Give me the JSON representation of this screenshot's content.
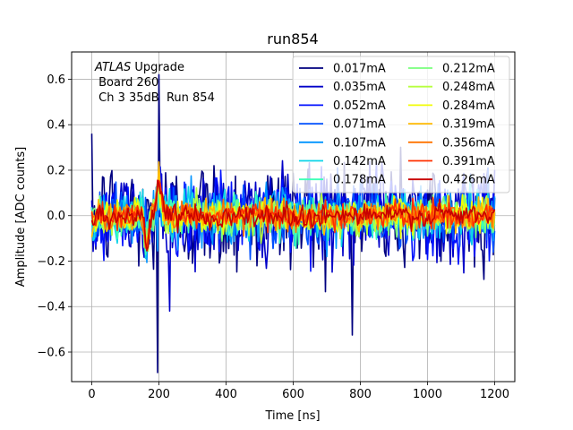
{
  "chart_data": {
    "type": "line",
    "title": "run854",
    "xlabel": "Time [ns]",
    "ylabel": "Amplitude [ADC counts]",
    "xlim": [
      -60,
      1260
    ],
    "ylim": [
      -0.73,
      0.72
    ],
    "xticks": [
      0,
      200,
      400,
      600,
      800,
      1000,
      1200
    ],
    "yticks": [
      -0.6,
      -0.4,
      -0.2,
      0.0,
      0.2,
      0.4,
      0.6
    ],
    "xtick_labels": [
      "0",
      "200",
      "400",
      "600",
      "800",
      "1000",
      "1200"
    ],
    "ytick_labels": [
      "−0.6",
      "−0.4",
      "−0.2",
      "0.0",
      "0.2",
      "0.4",
      "0.6"
    ],
    "grid": true,
    "legend": {
      "placement": "top-right",
      "columns": 2
    },
    "annotation": {
      "lines": [
        {
          "italic": "ATLAS",
          "rest": " Upgrade"
        },
        {
          "italic": "",
          "rest": " Board 260"
        },
        {
          "italic": "",
          "rest": " Ch 3 35dB  Run 854"
        }
      ]
    },
    "x_range": [
      0,
      1200
    ],
    "sample_step": 4,
    "series": [
      {
        "name": "0.017mA",
        "color": "#00007f",
        "noise_std": 0.13,
        "pulse_amp": 0.03
      },
      {
        "name": "0.035mA",
        "color": "#0000c8",
        "noise_std": 0.1,
        "pulse_amp": 0.035
      },
      {
        "name": "0.052mA",
        "color": "#0010ff",
        "noise_std": 0.085,
        "pulse_amp": 0.04
      },
      {
        "name": "0.071mA",
        "color": "#0050ff",
        "noise_std": 0.07,
        "pulse_amp": 0.045
      },
      {
        "name": "0.107mA",
        "color": "#0094ff",
        "noise_std": 0.06,
        "pulse_amp": 0.05
      },
      {
        "name": "0.142mA",
        "color": "#0dd4e8",
        "noise_std": 0.052,
        "pulse_amp": 0.055
      },
      {
        "name": "0.178mA",
        "color": "#3fffb7",
        "noise_std": 0.046,
        "pulse_amp": 0.06
      },
      {
        "name": "0.212mA",
        "color": "#7aff7d",
        "noise_std": 0.042,
        "pulse_amp": 0.065
      },
      {
        "name": "0.248mA",
        "color": "#b7ff3f",
        "noise_std": 0.038,
        "pulse_amp": 0.07
      },
      {
        "name": "0.284mA",
        "color": "#f1fc06",
        "noise_std": 0.035,
        "pulse_amp": 0.075
      },
      {
        "name": "0.319mA",
        "color": "#ffb900",
        "noise_std": 0.032,
        "pulse_amp": 0.08
      },
      {
        "name": "0.356mA",
        "color": "#ff7300",
        "noise_std": 0.03,
        "pulse_amp": 0.085
      },
      {
        "name": "0.391mA",
        "color": "#ff3000",
        "noise_std": 0.028,
        "pulse_amp": 0.09
      },
      {
        "name": "0.426mA",
        "color": "#c80000",
        "noise_std": 0.026,
        "pulse_amp": 0.095
      }
    ]
  }
}
